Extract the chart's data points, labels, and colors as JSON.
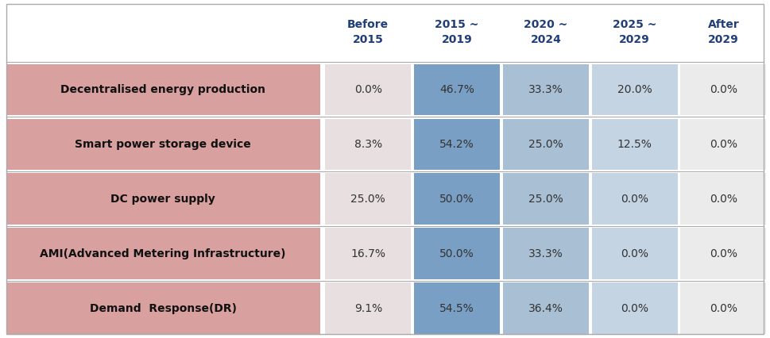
{
  "col_headers": [
    "Before\n2015",
    "2015 ~\n2019",
    "2020 ~\n2024",
    "2025 ~\n2029",
    "After\n2029"
  ],
  "rows": [
    {
      "label": "Decentralised energy production",
      "values": [
        "0.0%",
        "46.7%",
        "33.3%",
        "20.0%",
        "0.0%"
      ]
    },
    {
      "label": "Smart power storage device",
      "values": [
        "8.3%",
        "54.2%",
        "25.0%",
        "12.5%",
        "0.0%"
      ]
    },
    {
      "label": "DC power supply",
      "values": [
        "25.0%",
        "50.0%",
        "25.0%",
        "0.0%",
        "0.0%"
      ]
    },
    {
      "label": "AMI(Advanced Metering Infrastructure)",
      "values": [
        "16.7%",
        "50.0%",
        "33.3%",
        "0.0%",
        "0.0%"
      ]
    },
    {
      "label": "Demand  Response(DR)",
      "values": [
        "9.1%",
        "54.5%",
        "36.4%",
        "0.0%",
        "0.0%"
      ]
    }
  ],
  "row_bg_color": "#d9a0a0",
  "col_colors": [
    "#e8e0e0",
    "#7a9fc4",
    "#a8bfd4",
    "#c5d4e3",
    "#ebebeb"
  ],
  "header_text_color": "#1f3e7a",
  "cell_text_color": "#333333",
  "label_text_color": "#111111",
  "grid_color": "#aaaaaa",
  "background_color": "#ffffff",
  "header_fontsize": 10,
  "cell_fontsize": 10,
  "label_fontsize": 10
}
